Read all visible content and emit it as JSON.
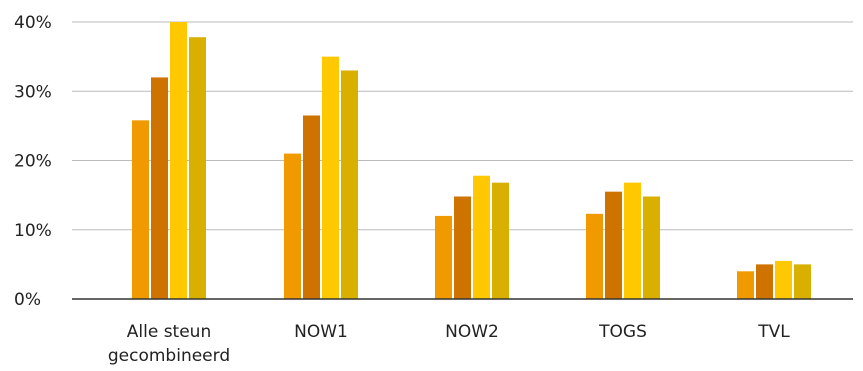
{
  "chart_data": {
    "type": "bar",
    "categories": [
      [
        "Alle steun",
        "gecombineerd"
      ],
      [
        "NOW1"
      ],
      [
        "NOW2"
      ],
      [
        "TOGS"
      ],
      [
        "TVL"
      ]
    ],
    "series": [
      {
        "color": "#f09a00",
        "values": [
          25.8,
          21.0,
          12.0,
          12.3,
          4.0
        ]
      },
      {
        "color": "#cf7300",
        "values": [
          32.0,
          26.5,
          14.8,
          15.5,
          5.0
        ]
      },
      {
        "color": "#ffc800",
        "values": [
          40.0,
          35.0,
          17.8,
          16.8,
          5.5
        ]
      },
      {
        "color": "#d9b000",
        "values": [
          37.8,
          33.0,
          16.8,
          14.8,
          5.0
        ]
      }
    ],
    "ylim": [
      0,
      40
    ],
    "yticks": [
      {
        "value": 0,
        "label": "0%"
      },
      {
        "value": 10,
        "label": "10%"
      },
      {
        "value": 20,
        "label": "20%"
      },
      {
        "value": 30,
        "label": "30%"
      },
      {
        "value": 40,
        "label": "40%"
      }
    ],
    "grid": true,
    "gridColor": "#bbbbbb",
    "axisColor": "#333333"
  }
}
